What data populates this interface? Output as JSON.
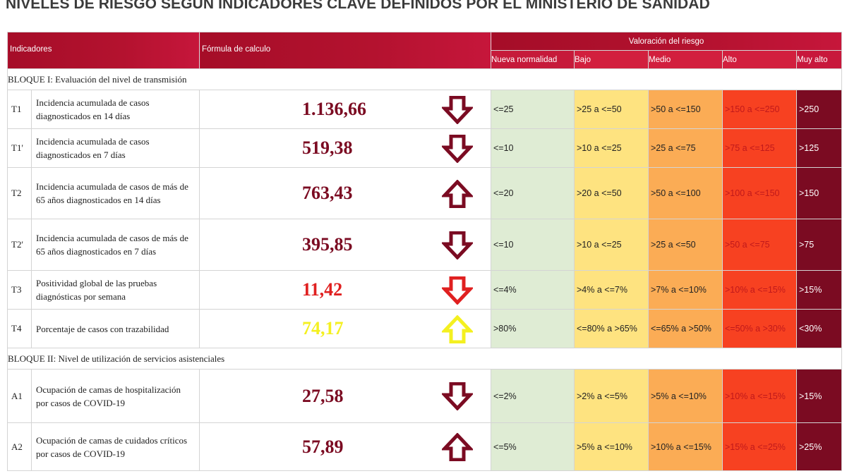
{
  "title": "NIVELES DE RIESGO SEGÚN INDICADORES CLAVE DEFINIDOS POR EL MINISTERIO DE SANIDAD",
  "header": {
    "indicadores": "Indicadores",
    "formula": "Fórmula de calculo",
    "valoracion": "Valoración del riesgo",
    "levels": [
      "Nueva normalidad",
      "Bajo",
      "Medio",
      "Alto",
      "Muy alto"
    ]
  },
  "colors": {
    "header": "#b4122f",
    "nueva": "#dfecd4",
    "bajo": "#fee380",
    "medio": "#fbac55",
    "alto": "#f74121",
    "muy_alto": "#7b0b22",
    "value_dark": "#7b0b22",
    "value_red": "#e02020",
    "value_yellow": "#f4f020"
  },
  "blocks": [
    {
      "title": "BLOQUE I: Evaluación del nivel de transmisión",
      "rows": [
        {
          "code": "T1",
          "indicator": "Incidencia acumulada de casos diagnosticados en 14 días",
          "value": "1.136,66",
          "value_color": "#7b0b22",
          "arrow": "down",
          "arrow_color": "#7b0b22",
          "thresholds": [
            "<=25",
            ">25 a <=50",
            ">50 a <=150",
            ">150 a <=250",
            ">250"
          ]
        },
        {
          "code": "T1'",
          "indicator": "Incidencia acumulada de casos diagnosticados en 7 días",
          "value": "519,38",
          "value_color": "#7b0b22",
          "arrow": "down",
          "arrow_color": "#7b0b22",
          "thresholds": [
            "<=10",
            ">10 a <=25",
            ">25 a <=75",
            ">75 a <=125",
            ">125"
          ]
        },
        {
          "code": "T2",
          "indicator": "Incidencia acumulada de casos de más de 65 años diagnosticados en 14 días",
          "value": "763,43",
          "value_color": "#7b0b22",
          "arrow": "up",
          "arrow_color": "#7b0b22",
          "thresholds": [
            "<=20",
            ">20 a <=50",
            ">50 a <=100",
            ">100 a <=150",
            ">150"
          ]
        },
        {
          "code": "T2'",
          "indicator": "Incidencia acumulada de casos de más de 65 años diagnosticados en 7 días",
          "value": "395,85",
          "value_color": "#7b0b22",
          "arrow": "down",
          "arrow_color": "#7b0b22",
          "thresholds": [
            "<=10",
            ">10 a <=25",
            ">25 a <=50",
            ">50 a <=75",
            ">75"
          ]
        },
        {
          "code": "T3",
          "indicator": "Positividad global de las pruebas diagnósticas por semana",
          "value": "11,42",
          "value_color": "#e02020",
          "arrow": "down",
          "arrow_color": "#e02020",
          "thresholds": [
            "<=4%",
            ">4% a <=7%",
            ">7% a <=10%",
            ">10% a <=15%",
            ">15%"
          ]
        },
        {
          "code": "T4",
          "indicator": "Porcentaje de casos con trazabilidad",
          "value": "74,17",
          "value_color": "#f4f020",
          "arrow": "up",
          "arrow_color": "#f4f020",
          "thresholds": [
            ">80%",
            "<=80% a >65%",
            "<=65% a >50%",
            "<=50% a >30%",
            "<30%"
          ]
        }
      ]
    },
    {
      "title": "BLOQUE II: Nivel de utilización de servicios asistenciales",
      "rows": [
        {
          "code": "A1",
          "indicator": "Ocupación de camas de hospitalización por casos de COVID-19",
          "value": "27,58",
          "value_color": "#7b0b22",
          "arrow": "down",
          "arrow_color": "#7b0b22",
          "thresholds": [
            "<=2%",
            ">2% a <=5%",
            ">5% a <=10%",
            ">10% a <=15%",
            ">15%"
          ]
        },
        {
          "code": "A2",
          "indicator": "Ocupación de camas de cuidados críticos por casos de COVID-19",
          "value": "57,89",
          "value_color": "#7b0b22",
          "arrow": "up",
          "arrow_color": "#7b0b22",
          "thresholds": [
            "<=5%",
            ">5% a <=10%",
            ">10% a <=15%",
            ">15% a <=25%",
            ">25%"
          ]
        }
      ]
    }
  ]
}
